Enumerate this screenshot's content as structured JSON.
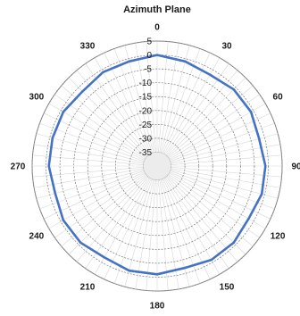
{
  "chart_data": {
    "type": "polar-line",
    "title": "Azimuth Plane",
    "angle_labels": [
      "0",
      "30",
      "60",
      "90",
      "120",
      "150",
      "180",
      "210",
      "240",
      "270",
      "300",
      "330"
    ],
    "radial_labels": [
      "5",
      "0",
      "-5",
      "-10",
      "-15",
      "-20",
      "-25",
      "-30",
      "-35"
    ],
    "rlim": [
      -40,
      5
    ],
    "grid": true,
    "series": [
      {
        "color": "#4472c4",
        "angles": [
          0,
          15,
          30,
          45,
          60,
          75,
          90,
          105,
          120,
          135,
          150,
          165,
          180,
          195,
          210,
          225,
          240,
          255,
          270,
          285,
          300,
          315,
          330,
          345
        ],
        "values": [
          0,
          -1,
          -2,
          -1,
          -1,
          -2,
          -1,
          -1,
          -2,
          -1,
          -1,
          -2,
          -1,
          -1,
          -2,
          -1,
          -1,
          -2,
          -1,
          -1,
          -1,
          -2,
          -1,
          -1
        ]
      }
    ]
  }
}
